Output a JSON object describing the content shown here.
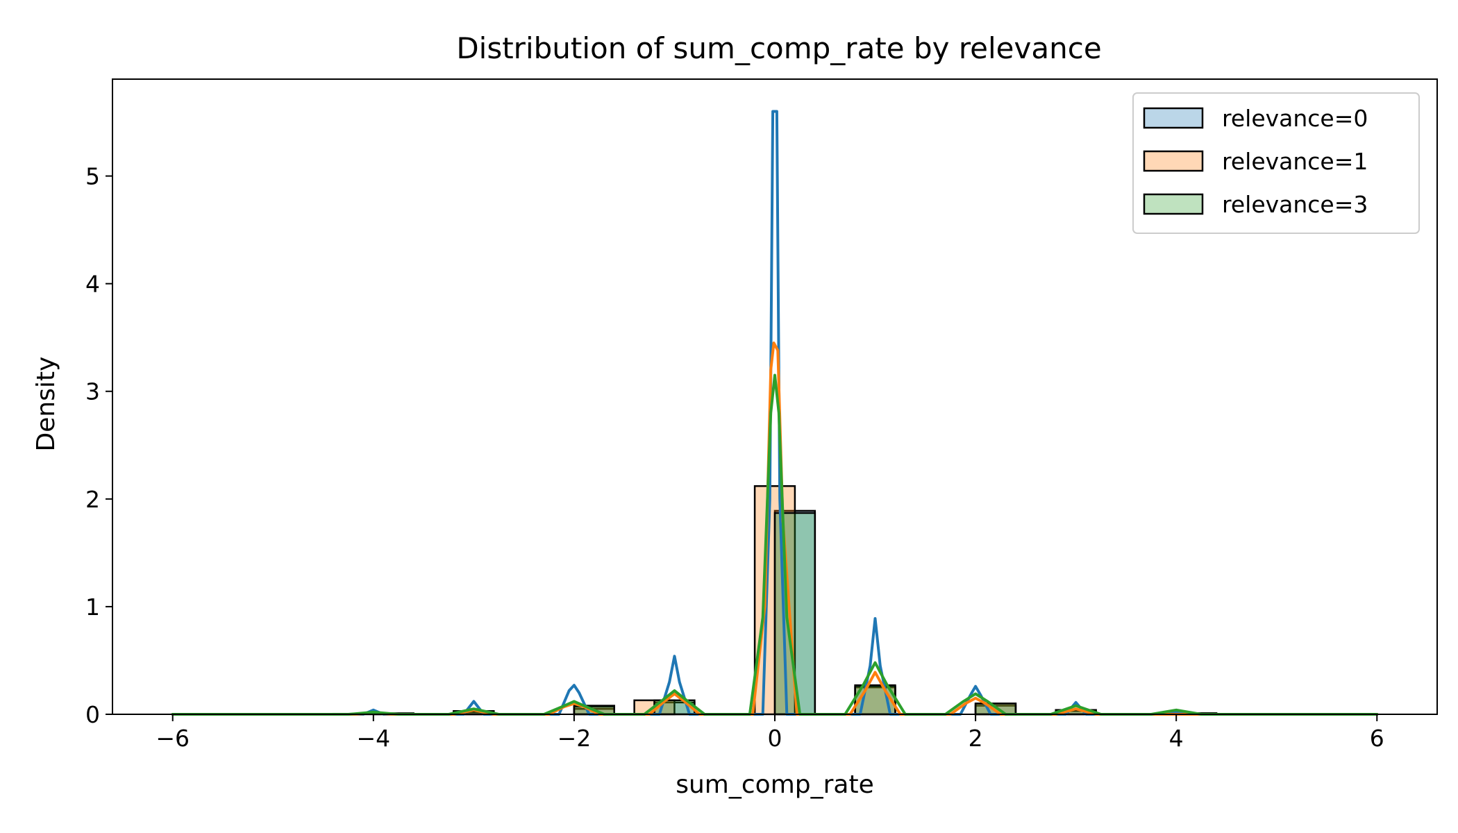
{
  "chart_data": {
    "type": "histogram",
    "title": "Distribution of sum_comp_rate by relevance",
    "xlabel": "sum_comp_rate",
    "ylabel": "Density",
    "xlim": [
      -6.6,
      6.6
    ],
    "ylim": [
      0,
      5.9
    ],
    "xticks": [
      -6,
      -4,
      -2,
      0,
      2,
      4,
      6
    ],
    "xtick_labels": [
      "−6",
      "−4",
      "−2",
      "0",
      "2",
      "4",
      "6"
    ],
    "yticks": [
      0,
      1,
      2,
      3,
      4,
      5
    ],
    "ytick_labels": [
      "0",
      "1",
      "2",
      "3",
      "4",
      "5"
    ],
    "grid": false,
    "legend_position": "top-right",
    "series": [
      {
        "name": "relevance=0",
        "line_color": "#1f77b4",
        "fill_color": "#1f77b4",
        "bins": [
          {
            "x0": -4.4,
            "x1": -3.6,
            "density": 0.005
          },
          {
            "x0": -3.2,
            "x1": -2.8,
            "density": 0.02
          },
          {
            "x0": -2.0,
            "x1": -1.6,
            "density": 0.05
          },
          {
            "x0": -1.2,
            "x1": -0.8,
            "density": 0.11
          },
          {
            "x0": 0.0,
            "x1": 0.4,
            "density": 1.89
          },
          {
            "x0": 0.8,
            "x1": 1.2,
            "density": 0.25
          },
          {
            "x0": 2.0,
            "x1": 2.4,
            "density": 0.08
          },
          {
            "x0": 2.8,
            "x1": 3.2,
            "density": 0.03
          },
          {
            "x0": 4.0,
            "x1": 4.4,
            "density": 0.01
          }
        ],
        "kde": [
          {
            "x": -6,
            "y": 0
          },
          {
            "x": -4.1,
            "y": 0
          },
          {
            "x": -4.0,
            "y": 0.04
          },
          {
            "x": -3.9,
            "y": 0
          },
          {
            "x": -3.1,
            "y": 0
          },
          {
            "x": -3.0,
            "y": 0.12
          },
          {
            "x": -2.9,
            "y": 0
          },
          {
            "x": -2.15,
            "y": 0
          },
          {
            "x": -2.05,
            "y": 0.22
          },
          {
            "x": -2.0,
            "y": 0.27
          },
          {
            "x": -1.95,
            "y": 0.2
          },
          {
            "x": -1.85,
            "y": 0
          },
          {
            "x": -1.15,
            "y": 0
          },
          {
            "x": -1.05,
            "y": 0.3
          },
          {
            "x": -1.0,
            "y": 0.54
          },
          {
            "x": -0.95,
            "y": 0.3
          },
          {
            "x": -0.85,
            "y": 0
          },
          {
            "x": -0.12,
            "y": 0
          },
          {
            "x": -0.05,
            "y": 2.0
          },
          {
            "x": -0.02,
            "y": 5.6
          },
          {
            "x": 0.02,
            "y": 5.6
          },
          {
            "x": 0.05,
            "y": 2.0
          },
          {
            "x": 0.12,
            "y": 0
          },
          {
            "x": 0.85,
            "y": 0
          },
          {
            "x": 0.95,
            "y": 0.45
          },
          {
            "x": 1.0,
            "y": 0.89
          },
          {
            "x": 1.05,
            "y": 0.45
          },
          {
            "x": 1.15,
            "y": 0
          },
          {
            "x": 1.85,
            "y": 0
          },
          {
            "x": 1.95,
            "y": 0.18
          },
          {
            "x": 2.0,
            "y": 0.26
          },
          {
            "x": 2.05,
            "y": 0.18
          },
          {
            "x": 2.15,
            "y": 0
          },
          {
            "x": 2.9,
            "y": 0
          },
          {
            "x": 3.0,
            "y": 0.11
          },
          {
            "x": 3.1,
            "y": 0
          },
          {
            "x": 3.9,
            "y": 0
          },
          {
            "x": 4.0,
            "y": 0.02
          },
          {
            "x": 4.1,
            "y": 0
          },
          {
            "x": 6,
            "y": 0
          }
        ]
      },
      {
        "name": "relevance=1",
        "line_color": "#ff7f0e",
        "fill_color": "#ff7f0e",
        "bins": [
          {
            "x0": -3.2,
            "x1": -2.8,
            "density": 0.03
          },
          {
            "x0": -2.0,
            "x1": -1.6,
            "density": 0.07
          },
          {
            "x0": -1.4,
            "x1": -1.0,
            "density": 0.13
          },
          {
            "x0": -0.2,
            "x1": 0.2,
            "density": 2.12
          },
          {
            "x0": 0.8,
            "x1": 1.2,
            "density": 0.26
          },
          {
            "x0": 2.0,
            "x1": 2.4,
            "density": 0.1
          },
          {
            "x0": 2.8,
            "x1": 3.2,
            "density": 0.04
          }
        ],
        "kde": [
          {
            "x": -6,
            "y": 0
          },
          {
            "x": -4.2,
            "y": 0
          },
          {
            "x": -4.0,
            "y": 0.01
          },
          {
            "x": -3.8,
            "y": 0
          },
          {
            "x": -3.2,
            "y": 0
          },
          {
            "x": -3.0,
            "y": 0.04
          },
          {
            "x": -2.8,
            "y": 0
          },
          {
            "x": -2.25,
            "y": 0
          },
          {
            "x": -2.1,
            "y": 0.07
          },
          {
            "x": -2.0,
            "y": 0.1
          },
          {
            "x": -1.9,
            "y": 0.07
          },
          {
            "x": -1.75,
            "y": 0
          },
          {
            "x": -1.25,
            "y": 0
          },
          {
            "x": -1.1,
            "y": 0.12
          },
          {
            "x": -1.0,
            "y": 0.19
          },
          {
            "x": -0.9,
            "y": 0.12
          },
          {
            "x": -0.75,
            "y": 0
          },
          {
            "x": -0.22,
            "y": 0
          },
          {
            "x": -0.1,
            "y": 1.0
          },
          {
            "x": -0.04,
            "y": 3.2
          },
          {
            "x": -0.01,
            "y": 3.45
          },
          {
            "x": 0.03,
            "y": 3.38
          },
          {
            "x": 0.08,
            "y": 1.8
          },
          {
            "x": 0.22,
            "y": 0
          },
          {
            "x": 0.75,
            "y": 0
          },
          {
            "x": 0.9,
            "y": 0.22
          },
          {
            "x": 1.0,
            "y": 0.39
          },
          {
            "x": 1.1,
            "y": 0.22
          },
          {
            "x": 1.25,
            "y": 0
          },
          {
            "x": 1.75,
            "y": 0
          },
          {
            "x": 1.9,
            "y": 0.1
          },
          {
            "x": 2.0,
            "y": 0.15
          },
          {
            "x": 2.1,
            "y": 0.1
          },
          {
            "x": 2.25,
            "y": 0
          },
          {
            "x": 2.8,
            "y": 0
          },
          {
            "x": 3.0,
            "y": 0.05
          },
          {
            "x": 3.2,
            "y": 0
          },
          {
            "x": 6,
            "y": 0
          }
        ]
      },
      {
        "name": "relevance=3",
        "line_color": "#2ca02c",
        "fill_color": "#2ca02c",
        "bins": [
          {
            "x0": -4.0,
            "x1": -3.6,
            "density": 0.01
          },
          {
            "x0": -3.2,
            "x1": -2.8,
            "density": 0.03
          },
          {
            "x0": -2.0,
            "x1": -1.6,
            "density": 0.08
          },
          {
            "x0": -1.2,
            "x1": -0.8,
            "density": 0.13
          },
          {
            "x0": 0.0,
            "x1": 0.4,
            "density": 1.87
          },
          {
            "x0": 0.8,
            "x1": 1.2,
            "density": 0.27
          },
          {
            "x0": 2.0,
            "x1": 2.4,
            "density": 0.1
          },
          {
            "x0": 2.8,
            "x1": 3.2,
            "density": 0.04
          },
          {
            "x0": 4.0,
            "x1": 4.4,
            "density": 0.01
          }
        ],
        "kde": [
          {
            "x": -6,
            "y": 0
          },
          {
            "x": -4.25,
            "y": 0
          },
          {
            "x": -4.0,
            "y": 0.02
          },
          {
            "x": -3.75,
            "y": 0
          },
          {
            "x": -3.25,
            "y": 0
          },
          {
            "x": -3.0,
            "y": 0.05
          },
          {
            "x": -2.75,
            "y": 0
          },
          {
            "x": -2.3,
            "y": 0
          },
          {
            "x": -2.12,
            "y": 0.07
          },
          {
            "x": -2.0,
            "y": 0.12
          },
          {
            "x": -1.88,
            "y": 0.07
          },
          {
            "x": -1.7,
            "y": 0
          },
          {
            "x": -1.3,
            "y": 0
          },
          {
            "x": -1.12,
            "y": 0.13
          },
          {
            "x": -1.0,
            "y": 0.22
          },
          {
            "x": -0.88,
            "y": 0.13
          },
          {
            "x": -0.7,
            "y": 0
          },
          {
            "x": -0.25,
            "y": 0
          },
          {
            "x": -0.12,
            "y": 0.9
          },
          {
            "x": -0.04,
            "y": 2.8
          },
          {
            "x": 0.0,
            "y": 3.15
          },
          {
            "x": 0.04,
            "y": 2.8
          },
          {
            "x": 0.12,
            "y": 0.9
          },
          {
            "x": 0.25,
            "y": 0
          },
          {
            "x": 0.7,
            "y": 0
          },
          {
            "x": 0.88,
            "y": 0.27
          },
          {
            "x": 1.0,
            "y": 0.48
          },
          {
            "x": 1.12,
            "y": 0.27
          },
          {
            "x": 1.3,
            "y": 0
          },
          {
            "x": 1.7,
            "y": 0
          },
          {
            "x": 1.88,
            "y": 0.12
          },
          {
            "x": 2.0,
            "y": 0.19
          },
          {
            "x": 2.12,
            "y": 0.12
          },
          {
            "x": 2.3,
            "y": 0
          },
          {
            "x": 2.75,
            "y": 0
          },
          {
            "x": 3.0,
            "y": 0.08
          },
          {
            "x": 3.25,
            "y": 0
          },
          {
            "x": 3.75,
            "y": 0
          },
          {
            "x": 4.0,
            "y": 0.04
          },
          {
            "x": 4.25,
            "y": 0
          },
          {
            "x": 6,
            "y": 0
          }
        ]
      }
    ]
  }
}
